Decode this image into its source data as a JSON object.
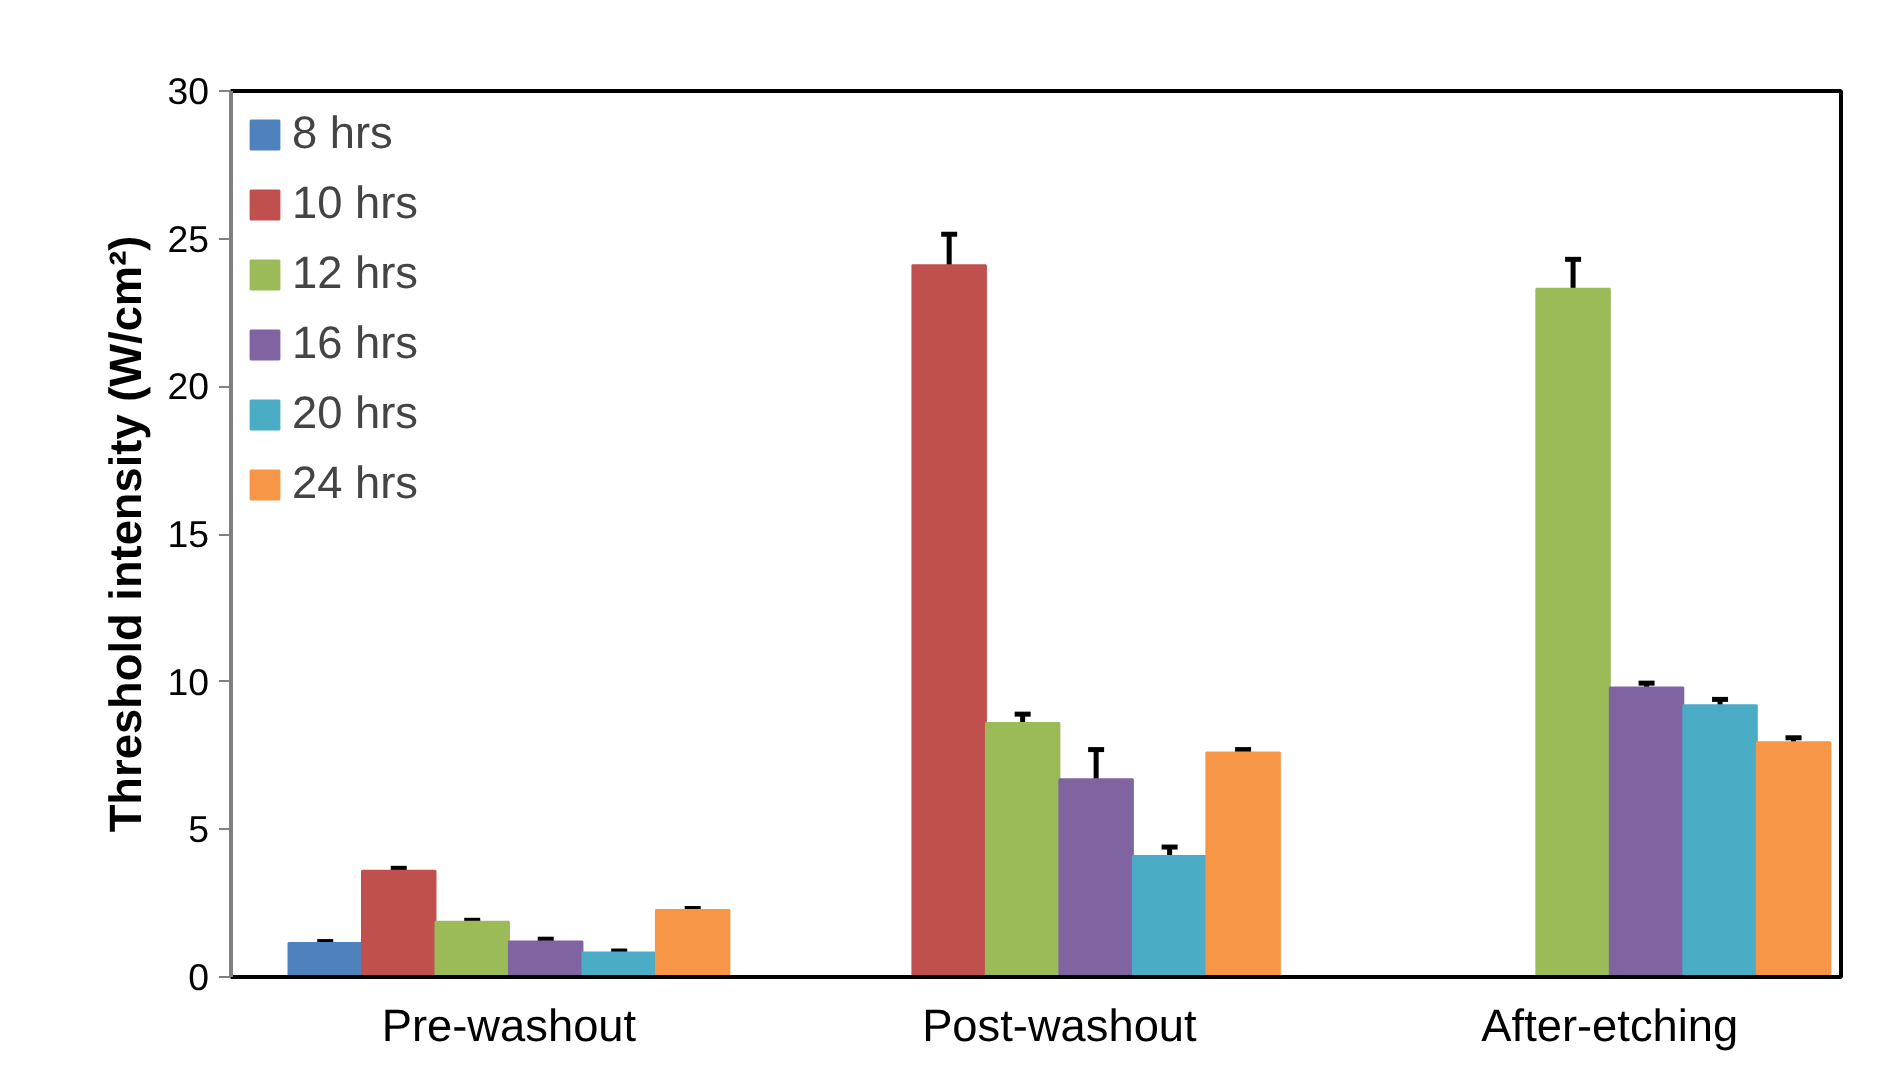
{
  "chart_data": {
    "type": "bar",
    "ylabel": "Threshold intensity (W/cm²)",
    "categories": [
      "Pre-washout",
      "Post-washout",
      "After-etching"
    ],
    "ylim": [
      0,
      30
    ],
    "yticks": [
      0,
      5,
      10,
      15,
      20,
      25,
      30
    ],
    "grid": false,
    "legend": "top left",
    "series": [
      {
        "name": "8 hrs",
        "color": "#4f81bd",
        "values": [
          1.15,
          null,
          null
        ],
        "errors": [
          0.05,
          null,
          null
        ]
      },
      {
        "name": "10 hrs",
        "color": "#c0504d",
        "values": [
          3.6,
          24.1,
          null
        ],
        "errors": [
          0.08,
          1.05,
          null
        ]
      },
      {
        "name": "12 hrs",
        "color": "#9bbb59",
        "values": [
          1.87,
          8.6,
          23.3
        ],
        "errors": [
          0.05,
          0.3,
          1.0
        ]
      },
      {
        "name": "16 hrs",
        "color": "#8064a2",
        "values": [
          1.2,
          6.7,
          9.8
        ],
        "errors": [
          0.08,
          1.0,
          0.15
        ]
      },
      {
        "name": "20 hrs",
        "color": "#4bacc6",
        "values": [
          0.83,
          4.1,
          9.2
        ],
        "errors": [
          0.05,
          0.3,
          0.2
        ]
      },
      {
        "name": "24 hrs",
        "color": "#f79646",
        "values": [
          2.27,
          7.6,
          7.95
        ],
        "errors": [
          0.05,
          0.1,
          0.15
        ]
      }
    ]
  }
}
